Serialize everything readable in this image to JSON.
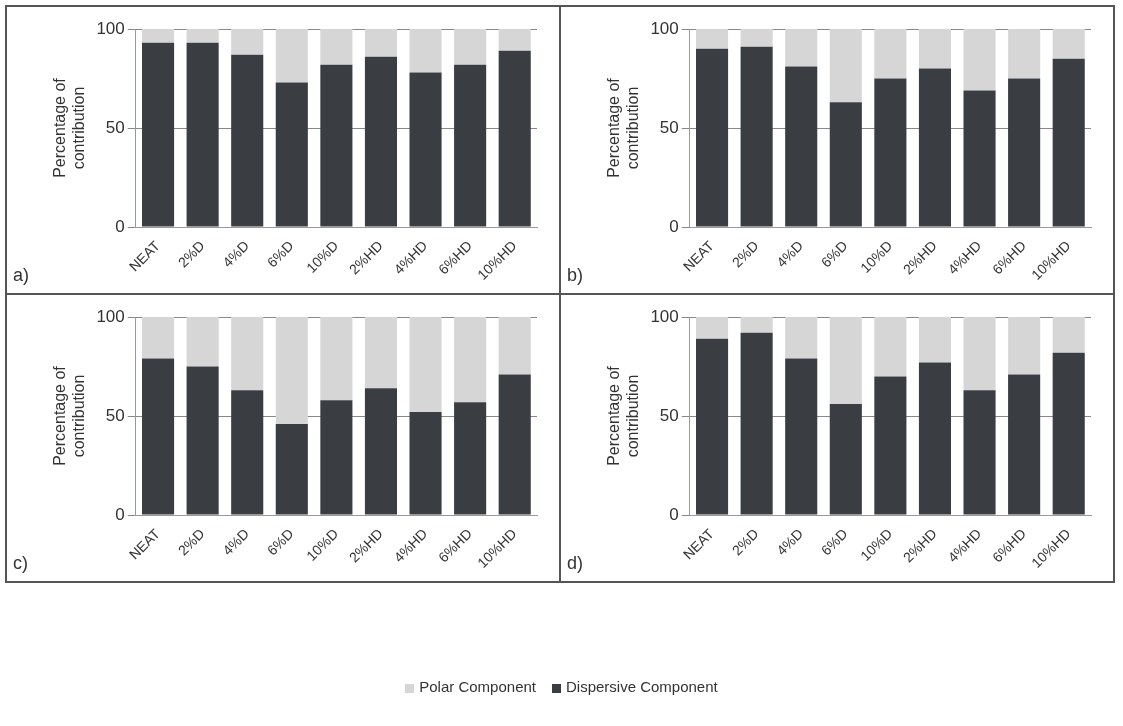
{
  "chart_data": [
    {
      "type": "bar",
      "stacked": true,
      "categories": [
        "NEAT",
        "2%D",
        "4%D",
        "6%D",
        "10%D",
        "2%HD",
        "4%HD",
        "6%HD",
        "10%HD"
      ],
      "ylabel": "Percentage of contribution",
      "ylim": [
        0,
        100
      ],
      "yticks": [
        0,
        50,
        100
      ],
      "grid": "y",
      "annotations": [
        "a)"
      ],
      "legend": "bottom",
      "series": [
        {
          "name": "Dispersive Component",
          "color": "#3a3d42",
          "values": [
            93,
            93,
            87,
            73,
            82,
            86,
            78,
            82,
            89
          ]
        },
        {
          "name": "Polar Component",
          "color": "#d6d6d6",
          "values": [
            7,
            7,
            13,
            27,
            18,
            14,
            22,
            18,
            11
          ]
        }
      ]
    },
    {
      "type": "bar",
      "stacked": true,
      "categories": [
        "NEAT",
        "2%D",
        "4%D",
        "6%D",
        "10%D",
        "2%HD",
        "4%HD",
        "6%HD",
        "10%HD"
      ],
      "ylabel": "Percentage of contribution",
      "ylim": [
        0,
        100
      ],
      "yticks": [
        0,
        50,
        100
      ],
      "grid": "y",
      "annotations": [
        "b)"
      ],
      "series": [
        {
          "color": "#3a3d42",
          "values": [
            90,
            91,
            81,
            63,
            75,
            80,
            69,
            75,
            85
          ]
        },
        {
          "color": "#d6d6d6",
          "values": [
            10,
            9,
            19,
            37,
            25,
            20,
            31,
            25,
            15
          ]
        }
      ]
    },
    {
      "type": "bar",
      "stacked": true,
      "categories": [
        "NEAT",
        "2%D",
        "4%D",
        "6%D",
        "10%D",
        "2%HD",
        "4%HD",
        "6%HD",
        "10%HD"
      ],
      "ylabel": "Percentage of contribution",
      "ylim": [
        0,
        100
      ],
      "yticks": [
        0,
        50,
        100
      ],
      "grid": "y",
      "annotations": [
        "c)"
      ],
      "series": [
        {
          "color": "#3a3d42",
          "values": [
            79,
            75,
            63,
            46,
            58,
            64,
            52,
            57,
            71
          ]
        },
        {
          "color": "#d6d6d6",
          "values": [
            21,
            25,
            37,
            54,
            42,
            36,
            48,
            43,
            29
          ]
        }
      ]
    },
    {
      "type": "bar",
      "stacked": true,
      "categories": [
        "NEAT",
        "2%D",
        "4%D",
        "6%D",
        "10%D",
        "2%HD",
        "4%HD",
        "6%HD",
        "10%HD"
      ],
      "ylabel": "Percentage of contribution",
      "ylim": [
        0,
        100
      ],
      "yticks": [
        0,
        50,
        100
      ],
      "grid": "y",
      "annotations": [
        "d)"
      ],
      "series": [
        {
          "color": "#3a3d42",
          "values": [
            89,
            92,
            79,
            56,
            70,
            77,
            63,
            71,
            82
          ]
        },
        {
          "color": "#d6d6d6",
          "values": [
            11,
            8,
            21,
            44,
            30,
            23,
            37,
            29,
            18
          ]
        }
      ]
    }
  ]
}
